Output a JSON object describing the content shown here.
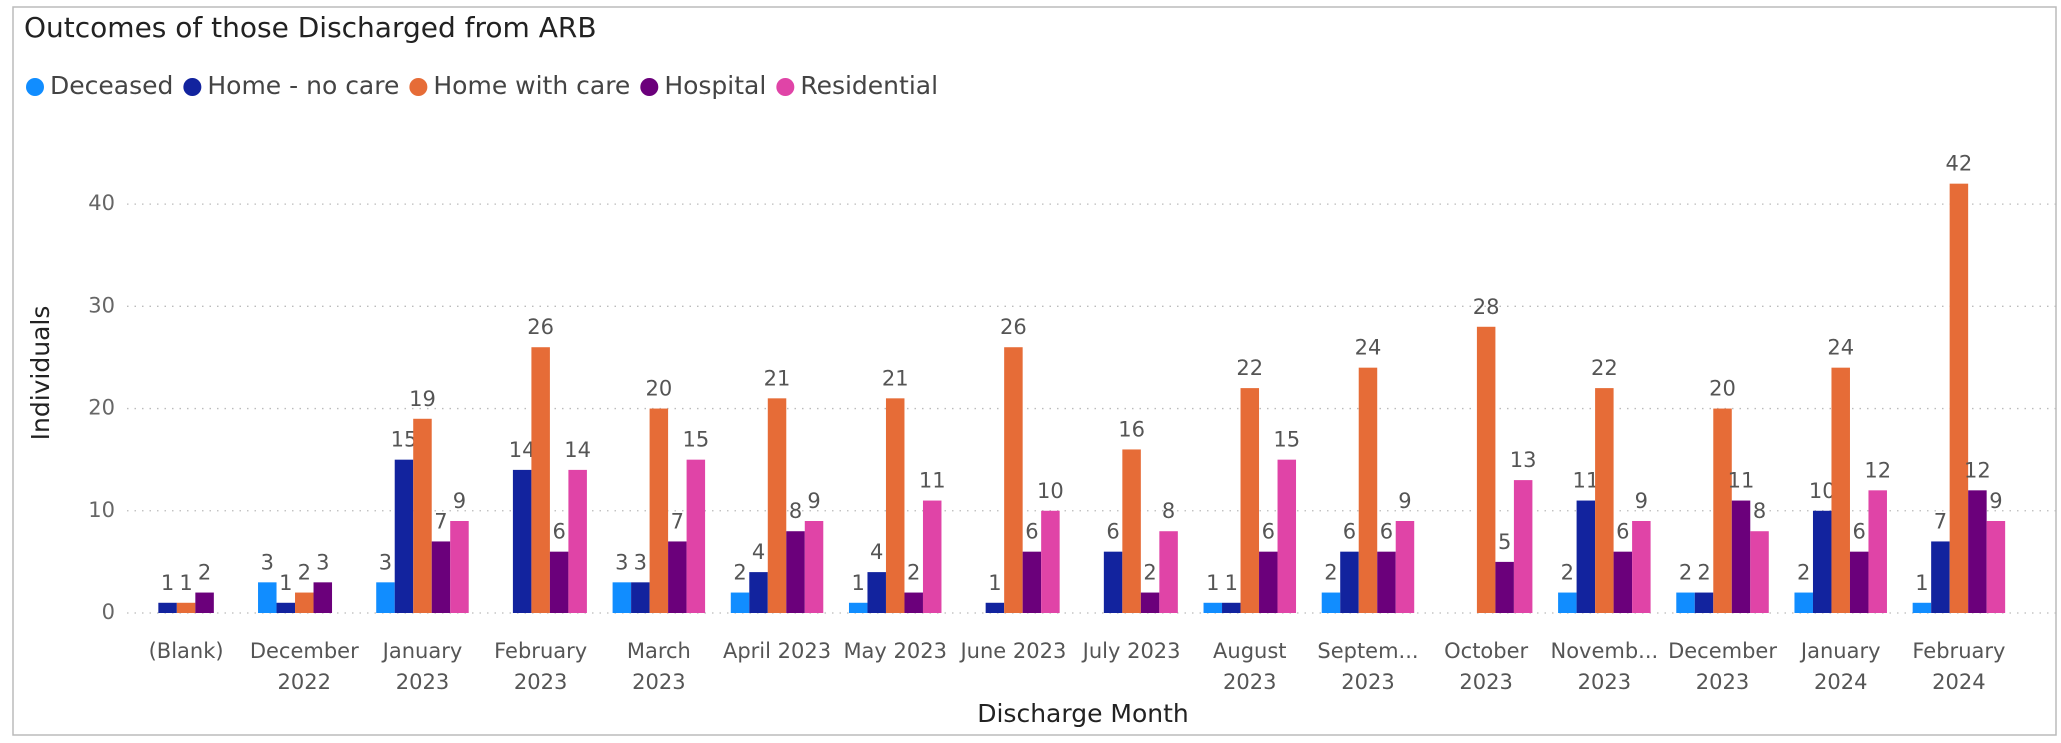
{
  "chart_data": {
    "type": "bar",
    "title": "Outcomes of those Discharged from ARB",
    "x_label": "Discharge Month",
    "y_label": "Individuals",
    "categories": [
      [
        "(Blank)"
      ],
      [
        "December",
        "2022"
      ],
      [
        "January",
        "2023"
      ],
      [
        "February",
        "2023"
      ],
      [
        "March",
        "2023"
      ],
      [
        "April 2023"
      ],
      [
        "May 2023"
      ],
      [
        "June 2023"
      ],
      [
        "July 2023"
      ],
      [
        "August",
        "2023"
      ],
      [
        "Septem...",
        "2023"
      ],
      [
        "October",
        "2023"
      ],
      [
        "Novemb...",
        "2023"
      ],
      [
        "December",
        "2023"
      ],
      [
        "January",
        "2024"
      ],
      [
        "February",
        "2024"
      ]
    ],
    "series": [
      {
        "name": "Deceased",
        "color": "#118DFF",
        "values": [
          null,
          3,
          3,
          null,
          3,
          2,
          1,
          null,
          null,
          1,
          2,
          null,
          2,
          2,
          2,
          1
        ]
      },
      {
        "name": "Home - no care",
        "color": "#12239E",
        "values": [
          1,
          1,
          15,
          14,
          3,
          4,
          4,
          1,
          6,
          1,
          6,
          null,
          11,
          2,
          10,
          7
        ]
      },
      {
        "name": "Home with care",
        "color": "#E66C37",
        "values": [
          1,
          2,
          19,
          26,
          20,
          21,
          21,
          26,
          16,
          22,
          24,
          28,
          22,
          20,
          24,
          42
        ]
      },
      {
        "name": "Hospital",
        "color": "#6B007B",
        "values": [
          2,
          3,
          7,
          6,
          7,
          8,
          2,
          6,
          2,
          6,
          6,
          5,
          6,
          11,
          6,
          12
        ]
      },
      {
        "name": "Residential",
        "color": "#E044A7",
        "values": [
          null,
          null,
          9,
          14,
          15,
          9,
          11,
          10,
          8,
          15,
          9,
          13,
          9,
          8,
          12,
          9
        ]
      }
    ],
    "ylim": [
      0,
      45
    ],
    "yticks": [
      0,
      10,
      20,
      30,
      40
    ],
    "grid": true,
    "legend": "top-left"
  }
}
